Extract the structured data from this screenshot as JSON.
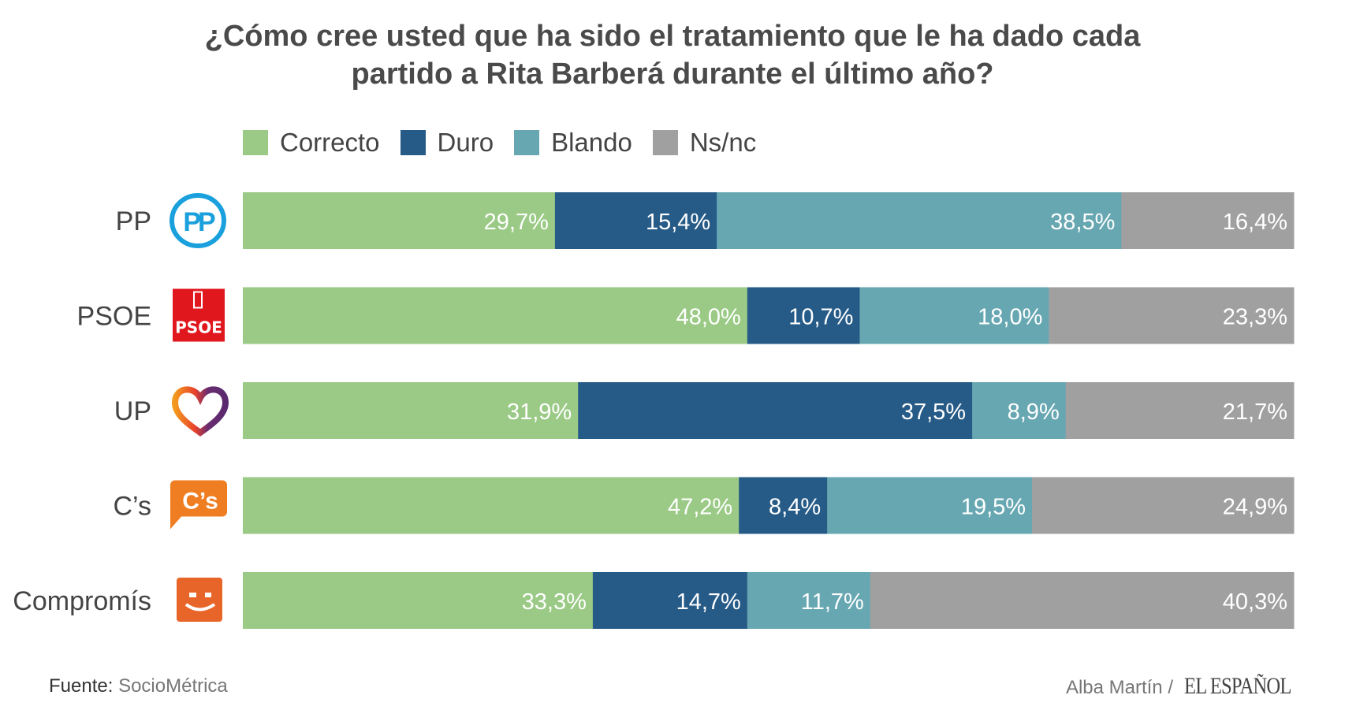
{
  "chart_data": {
    "type": "bar",
    "orientation": "horizontal-stacked-100",
    "title_lines": [
      "¿Cómo cree usted que ha sido el tratamiento que le ha dado cada",
      "partido a Rita Barberá durante el último año?"
    ],
    "categories": [
      "PP",
      "PSOE",
      "UP",
      "C’s",
      "Compromís"
    ],
    "series": [
      {
        "name": "Correcto",
        "color": "#9aca85",
        "values": [
          29.7,
          48.0,
          31.9,
          47.2,
          33.3
        ],
        "labels": [
          "29,7%",
          "48,0%",
          "31,9%",
          "47,2%",
          "33,3%"
        ]
      },
      {
        "name": "Duro",
        "color": "#275b87",
        "values": [
          15.4,
          10.7,
          37.5,
          8.4,
          14.7
        ],
        "labels": [
          "15,4%",
          "10,7%",
          "37,5%",
          "8,4%",
          "14,7%"
        ]
      },
      {
        "name": "Blando",
        "color": "#67a7b2",
        "values": [
          38.5,
          18.0,
          8.9,
          19.5,
          11.7
        ],
        "labels": [
          "38,5%",
          "18,0%",
          "8,9%",
          "19,5%",
          "11,7%"
        ]
      },
      {
        "name": "Ns/nc",
        "color": "#a0a0a0",
        "values": [
          16.4,
          23.3,
          21.7,
          24.9,
          40.3
        ],
        "labels": [
          "16,4%",
          "23,3%",
          "21,7%",
          "24,9%",
          "40,3%"
        ]
      }
    ],
    "legend_position": "top",
    "grid": false,
    "xlim": [
      0,
      100
    ]
  },
  "logos": [
    "pp-logo",
    "psoe-logo",
    "up-heart-logo",
    "cs-logo",
    "compromis-logo"
  ],
  "psoe_logo_text": "PSOE",
  "cs_logo_text": "C’s",
  "footer": {
    "source_label": "Fuente:",
    "source_value": "SocioMétrica",
    "author": "Alba Martín /",
    "brand": "EL ESPAÑOL"
  }
}
